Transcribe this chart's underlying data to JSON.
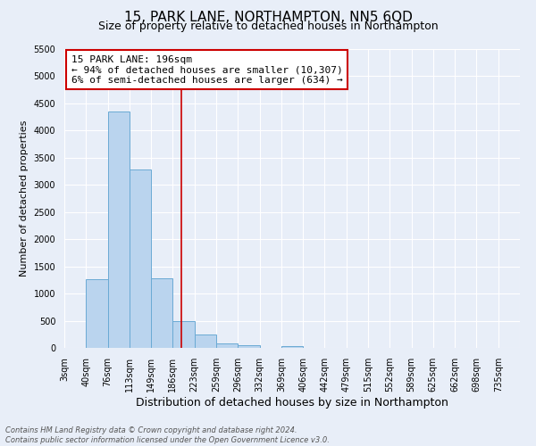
{
  "title": "15, PARK LANE, NORTHAMPTON, NN5 6QD",
  "subtitle": "Size of property relative to detached houses in Northampton",
  "xlabel": "Distribution of detached houses by size in Northampton",
  "ylabel": "Number of detached properties",
  "bin_labels": [
    "3sqm",
    "40sqm",
    "76sqm",
    "113sqm",
    "149sqm",
    "186sqm",
    "223sqm",
    "259sqm",
    "296sqm",
    "332sqm",
    "369sqm",
    "406sqm",
    "442sqm",
    "479sqm",
    "515sqm",
    "552sqm",
    "589sqm",
    "625sqm",
    "662sqm",
    "698sqm",
    "735sqm"
  ],
  "bar_values": [
    0,
    1270,
    4350,
    3280,
    1280,
    500,
    240,
    90,
    50,
    0,
    30,
    0,
    0,
    0,
    0,
    0,
    0,
    0,
    0,
    0,
    0
  ],
  "bar_color": "#bad4ee",
  "bar_edge_color": "#6aaad4",
  "property_line_x": 5.4,
  "property_line_color": "#cc0000",
  "annotation_title": "15 PARK LANE: 196sqm",
  "annotation_line1": "← 94% of detached houses are smaller (10,307)",
  "annotation_line2": "6% of semi-detached houses are larger (634) →",
  "annotation_box_color": "#cc0000",
  "ylim": [
    0,
    5500
  ],
  "yticks": [
    0,
    500,
    1000,
    1500,
    2000,
    2500,
    3000,
    3500,
    4000,
    4500,
    5000,
    5500
  ],
  "footnote1": "Contains HM Land Registry data © Crown copyright and database right 2024.",
  "footnote2": "Contains public sector information licensed under the Open Government Licence v3.0.",
  "bg_color": "#e8eef8",
  "plot_bg_color": "#e8eef8",
  "grid_color": "#ffffff",
  "title_fontsize": 11,
  "subtitle_fontsize": 9,
  "xlabel_fontsize": 9,
  "ylabel_fontsize": 8,
  "tick_fontsize": 7,
  "annotation_fontsize": 8,
  "footnote_fontsize": 6
}
